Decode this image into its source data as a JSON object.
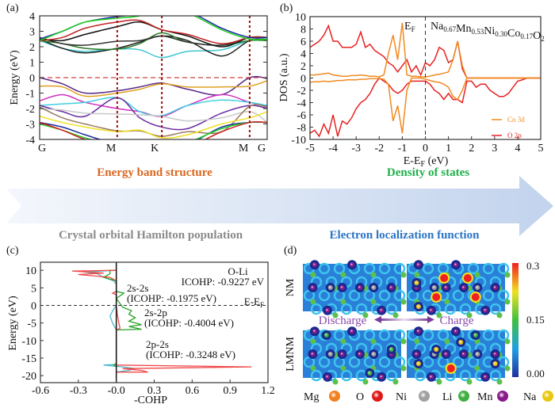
{
  "banner": {
    "arrow_colors": [
      "#f4f7fc",
      "#c2d3ed"
    ],
    "titles": {
      "band": {
        "text": "Energy band structure",
        "color": "#d9661f"
      },
      "dos": {
        "text": "Density of states",
        "color": "#1fb04a"
      },
      "cohp": {
        "text": "Crystal orbital Hamilton population",
        "color": "#8a8a8a"
      },
      "elf": {
        "text": "Electron localization function",
        "color": "#2a74c4"
      }
    }
  },
  "chart_data": [
    {
      "panel": "(a)",
      "type": "line",
      "ylabel": "Energy (eV)",
      "ylim": [
        -4,
        4
      ],
      "yticks": [
        "4",
        "3",
        "2",
        "1",
        "0",
        "-1",
        "-2",
        "-3",
        "-4"
      ],
      "kpoints": [
        {
          "label": "G",
          "x": 0
        },
        {
          "label": "M",
          "x": 0.341
        },
        {
          "label": "K",
          "x": 0.537
        },
        {
          "label": "M",
          "x": 0.923
        },
        {
          "label": "G",
          "x": 1
        }
      ],
      "fermi_level": 0,
      "x": [
        0,
        0.1,
        0.2,
        0.341,
        0.44,
        0.537,
        0.65,
        0.8,
        0.923,
        1
      ],
      "bands": [
        {
          "color": "#5a2a8a",
          "values": [
            0,
            -0.4,
            -1.0,
            -0.85,
            -0.6,
            -0.35,
            -0.75,
            -1.1,
            0,
            -0.05
          ]
        },
        {
          "color": "#e0a020",
          "values": [
            -0.55,
            -0.6,
            -1.2,
            -1.0,
            -0.75,
            -0.4,
            -0.6,
            -0.6,
            -0.55,
            -0.2
          ]
        },
        {
          "color": "#d030c0",
          "values": [
            -1.5,
            -1.1,
            -1.6,
            -2.0,
            -2.2,
            -2.5,
            -1.8,
            -1.1,
            -1.6,
            -1.85
          ]
        },
        {
          "color": "#40d0e0",
          "values": [
            -1.8,
            -1.7,
            -1.6,
            -1.3,
            -2.2,
            -2.45,
            -1.8,
            -1.45,
            -1.6,
            -1.8
          ]
        },
        {
          "color": "#6a2aa0",
          "values": [
            -1.8,
            -2.2,
            -2.5,
            -1.3,
            -2.6,
            -3.2,
            -3.3,
            -2.3,
            -1.8,
            -2.0
          ]
        },
        {
          "color": "#c8c8c8",
          "values": [
            -2.0,
            -2.1,
            -2.3,
            -2.35,
            -2.4,
            -2.5,
            -2.8,
            -2.6,
            -2.2,
            -2.9
          ]
        },
        {
          "color": "#9a7a60",
          "values": [
            -1.9,
            -2.6,
            -3.0,
            -3.45,
            -3.45,
            -3.8,
            -3.5,
            -3.5,
            -1.85,
            -1.9
          ]
        },
        {
          "color": "#f0e020",
          "values": [
            -2.5,
            -2.9,
            -3.2,
            -3.5,
            -3.4,
            -3.9,
            -3.7,
            -3.0,
            -2.6,
            -2.2
          ]
        },
        {
          "color": "#1a2aa0",
          "values": [
            -2.9,
            -3.2,
            -3.7,
            -4.3,
            -4.3,
            -4.2,
            -4.3,
            -3.2,
            -2.9,
            -2.9
          ]
        },
        {
          "color": "#20d020",
          "values": [
            -3.0,
            -3.4,
            -3.9,
            -4.4,
            -4.5,
            -4.5,
            -4.2,
            -3.3,
            -2.9,
            -2.9
          ]
        },
        {
          "color": "#d02020",
          "values": [
            -2.9,
            -3.4,
            -4.0,
            -4.5,
            -4.6,
            -4.6,
            -4.5,
            -3.5,
            -2.9,
            -2.9
          ]
        },
        {
          "color": "#40c8d0",
          "values": [
            2.4,
            1.9,
            1.7,
            1.85,
            1.8,
            1.3,
            1.7,
            1.8,
            2.4,
            2.4
          ]
        },
        {
          "color": "#222222",
          "values": [
            2.5,
            1.9,
            1.6,
            1.9,
            2.3,
            2.7,
            2.4,
            1.4,
            2.4,
            2.4
          ]
        },
        {
          "color": "#2a7a2a",
          "values": [
            2.4,
            2.2,
            1.9,
            1.85,
            2.2,
            2.9,
            2.3,
            2.1,
            2.4,
            2.4
          ]
        },
        {
          "color": "#333333",
          "values": [
            2.6,
            2.2,
            2.1,
            2.35,
            2.4,
            2.7,
            2.3,
            2.1,
            2.6,
            2.6
          ]
        },
        {
          "color": "#111111",
          "values": [
            2.5,
            2.4,
            2.8,
            3.3,
            3.6,
            3.1,
            2.7,
            2.0,
            2.6,
            2.6
          ]
        },
        {
          "color": "#c02020",
          "values": [
            2.4,
            2.6,
            3.2,
            3.6,
            3.7,
            3.1,
            2.8,
            2.2,
            2.6,
            2.6
          ]
        },
        {
          "color": "#1a2aa0",
          "values": [
            2.5,
            3.0,
            3.6,
            3.95,
            4.1,
            4.4,
            4.3,
            3.2,
            2.6,
            2.6
          ]
        },
        {
          "color": "#20d020",
          "values": [
            2.4,
            3.0,
            3.6,
            3.85,
            4.0,
            4.5,
            4.2,
            3.1,
            2.5,
            2.5
          ]
        }
      ]
    },
    {
      "panel": "(b)",
      "type": "line",
      "xlabel": {
        "pre": "E-E",
        "sub": "F",
        "post": " (eV)"
      },
      "ylabel": "DOS (a.u.)",
      "xlim": [
        -5,
        5
      ],
      "ylim": [
        -10,
        10
      ],
      "xticks": [
        "-5",
        "-4",
        "-3",
        "-2",
        "-1",
        "0",
        "1",
        "2",
        "3",
        "4",
        "5"
      ],
      "yticks": [
        "10",
        "8",
        "6",
        "4",
        "2",
        "0",
        "-2",
        "-4",
        "-6",
        "-8",
        "-10"
      ],
      "fermi_label": {
        "pre": "E",
        "sub": "F"
      },
      "formula": [
        {
          "t": "Na",
          "s": "0.67"
        },
        {
          "t": "Mn",
          "s": "0.53"
        },
        {
          "t": "Ni",
          "s": "0.30"
        },
        {
          "t": "Co",
          "s": "0.17"
        },
        {
          "t": "O",
          "s": "2"
        }
      ],
      "x_start": -5,
      "x_step": 0.2,
      "series": [
        {
          "name": "Co 3d",
          "color": "#f08a20",
          "spin": "up",
          "values": [
            0.5,
            0.5,
            0.6,
            0.7,
            0.8,
            0.5,
            0.4,
            0.3,
            0.3,
            0.4,
            0.4,
            0.5,
            0.4,
            0.3,
            0.3,
            0.2,
            0.5,
            4,
            7,
            3,
            9,
            0.5,
            0.3,
            0.3,
            0.2,
            0.2,
            0.3,
            0.5,
            0.6,
            0.8,
            1,
            3,
            6,
            2,
            0,
            0,
            0,
            0,
            0,
            0,
            0,
            0,
            0,
            0,
            0,
            0,
            0,
            0,
            0,
            0,
            0
          ]
        },
        {
          "name": "Co 3d",
          "color": "#f08a20",
          "spin": "down",
          "values": [
            -0.7,
            -0.6,
            -0.6,
            -0.5,
            -0.6,
            -0.5,
            -0.4,
            -0.4,
            -0.3,
            -0.3,
            -0.3,
            -0.2,
            -0.2,
            -0.1,
            -0.1,
            -0.1,
            -0.2,
            -1,
            -7,
            -4.5,
            -9,
            -2,
            0,
            0,
            0,
            -0.2,
            -0.4,
            -0.6,
            -0.7,
            -1,
            -1.5,
            -3,
            -3.5,
            -2,
            0,
            0,
            0,
            0,
            0,
            0,
            0,
            0,
            0,
            0,
            0,
            0,
            0,
            0,
            0,
            0,
            0
          ]
        },
        {
          "name": "O 2p",
          "color": "#e82020",
          "spin": "up",
          "values": [
            5,
            5.5,
            6,
            7,
            8.5,
            6,
            6,
            5,
            5,
            5,
            5.5,
            7.5,
            5,
            5.5,
            4.5,
            4,
            3.5,
            2.5,
            2,
            1,
            2,
            3,
            1,
            2,
            0.5,
            2.5,
            2,
            3,
            5,
            4.5,
            2.5,
            3,
            6,
            1.5,
            0,
            0,
            0,
            0,
            0,
            0,
            0,
            0,
            0,
            0,
            0,
            0,
            0,
            0,
            0,
            0,
            0
          ]
        },
        {
          "name": "O 2p",
          "color": "#e82020",
          "spin": "down",
          "values": [
            -9,
            -8.5,
            -9.5,
            -7.5,
            -9,
            -6,
            -9.5,
            -7,
            -7.5,
            -6.5,
            -5,
            -4,
            -3.5,
            -2.5,
            -1,
            0,
            -0.5,
            -1,
            -2,
            -2.5,
            -2,
            -1,
            -0.5,
            -0.5,
            -0.5,
            -0.5,
            -1,
            -2,
            -2.5,
            -3.5,
            -2.5,
            -3.5,
            -3.5,
            -4,
            -0.5,
            -0.5,
            -1.5,
            -1,
            -1,
            -2,
            -2.5,
            -3,
            -3,
            -2.5,
            -1.5,
            -0.5,
            -0.3,
            0,
            0,
            0,
            0
          ]
        }
      ],
      "legend": [
        "Co 3d",
        "O 2p"
      ],
      "legend_placement": "bottom-right"
    },
    {
      "panel": "(c)",
      "type": "line",
      "xlabel": "-COHP",
      "ylabel": "Energy (eV)",
      "xlim": [
        -0.6,
        1.2
      ],
      "ylim": [
        -22,
        12.3
      ],
      "xticks": [
        "-0.6",
        "-0.3",
        "-0.0",
        "0.3",
        "0.6",
        "0.9",
        "1.2"
      ],
      "yticks": [
        "10",
        "5",
        "0",
        "-5",
        "-10",
        "-15",
        "-20"
      ],
      "bond": "O-Li",
      "total": "ICOHP: -0.9227 eV",
      "fermi_label": {
        "pre": "E-E",
        "sub": "F"
      },
      "series": [
        {
          "name": "2s-2s",
          "icohp": "(ICOHP: -0.1975 eV)",
          "color": "#4ab8c8",
          "points": [
            [
              -19,
              0
            ],
            [
              -18.5,
              0.1
            ],
            [
              -18,
              0.15
            ],
            [
              -17.5,
              0.05
            ],
            [
              -17,
              -0.1
            ],
            [
              -16.8,
              0
            ],
            [
              -7,
              0
            ],
            [
              -5,
              -0.03
            ],
            [
              -3,
              -0.05
            ],
            [
              -1,
              -0.02
            ],
            [
              0,
              0
            ],
            [
              6,
              0
            ],
            [
              7,
              -0.02
            ],
            [
              8,
              -0.1
            ],
            [
              9,
              -0.15
            ],
            [
              9.5,
              -0.25
            ],
            [
              10,
              0
            ]
          ]
        },
        {
          "name": "2s-2p",
          "icohp": "(ICOHP: -0.4004 eV)",
          "color": "#28a028",
          "points": [
            [
              -17.5,
              0
            ],
            [
              -17,
              -0.02
            ],
            [
              -16.5,
              0
            ],
            [
              -7,
              0
            ],
            [
              -6.8,
              0.2
            ],
            [
              -6,
              0.1
            ],
            [
              -5.5,
              0.2
            ],
            [
              -4.5,
              0.1
            ],
            [
              -3.5,
              0.15
            ],
            [
              -2.5,
              0.1
            ],
            [
              -1.5,
              0.12
            ],
            [
              -0.5,
              0.05
            ],
            [
              0.5,
              0.03
            ],
            [
              2,
              0
            ],
            [
              3.5,
              0.06
            ],
            [
              4,
              0
            ],
            [
              7,
              0
            ],
            [
              8,
              -0.1
            ],
            [
              9,
              -0.05
            ],
            [
              10,
              -0.05
            ],
            [
              10,
              0
            ]
          ]
        },
        {
          "name": "2p-2s",
          "icohp": "(ICOHP: -0.3248 eV)",
          "color": "#f04848",
          "points": [
            [
              -19,
              0
            ],
            [
              -19,
              0.25
            ],
            [
              -18.5,
              0.2
            ],
            [
              -18,
              0.05
            ],
            [
              -17.5,
              1.07
            ],
            [
              -17,
              0
            ],
            [
              -10,
              0
            ],
            [
              -7,
              0
            ],
            [
              -6.5,
              0.03
            ],
            [
              -5,
              0.02
            ],
            [
              -3,
              0.01
            ],
            [
              0,
              0
            ],
            [
              3,
              0
            ],
            [
              3.5,
              -0.03
            ],
            [
              4,
              0
            ],
            [
              7,
              0
            ],
            [
              8,
              -0.05
            ],
            [
              8.8,
              -0.3
            ],
            [
              9.2,
              -0.1
            ],
            [
              9.8,
              -0.35
            ],
            [
              10,
              0
            ]
          ]
        }
      ]
    },
    {
      "panel": "(d)",
      "type": "heatmap",
      "rows": [
        "NM",
        "LMNM"
      ],
      "columns_state": {
        "left": "Discharge",
        "right": "Charge"
      },
      "colorbar": {
        "ticks": [
          "0.3",
          "0.15",
          "0.00"
        ],
        "range": [
          0,
          0.3
        ],
        "colors": [
          "#2030a0",
          "#20a0e0",
          "#40c040",
          "#f0e020",
          "#f02020"
        ]
      },
      "legend": [
        {
          "label": "Mg",
          "color": "#f08020"
        },
        {
          "label": "O",
          "color": "#e01818"
        },
        {
          "label": "Ni",
          "color": "#a0a0a0"
        },
        {
          "label": "Li",
          "color": "#40b040"
        },
        {
          "label": "Mn",
          "color": "#8a1a8a"
        },
        {
          "label": "Na",
          "color": "#e8c810"
        }
      ]
    }
  ]
}
